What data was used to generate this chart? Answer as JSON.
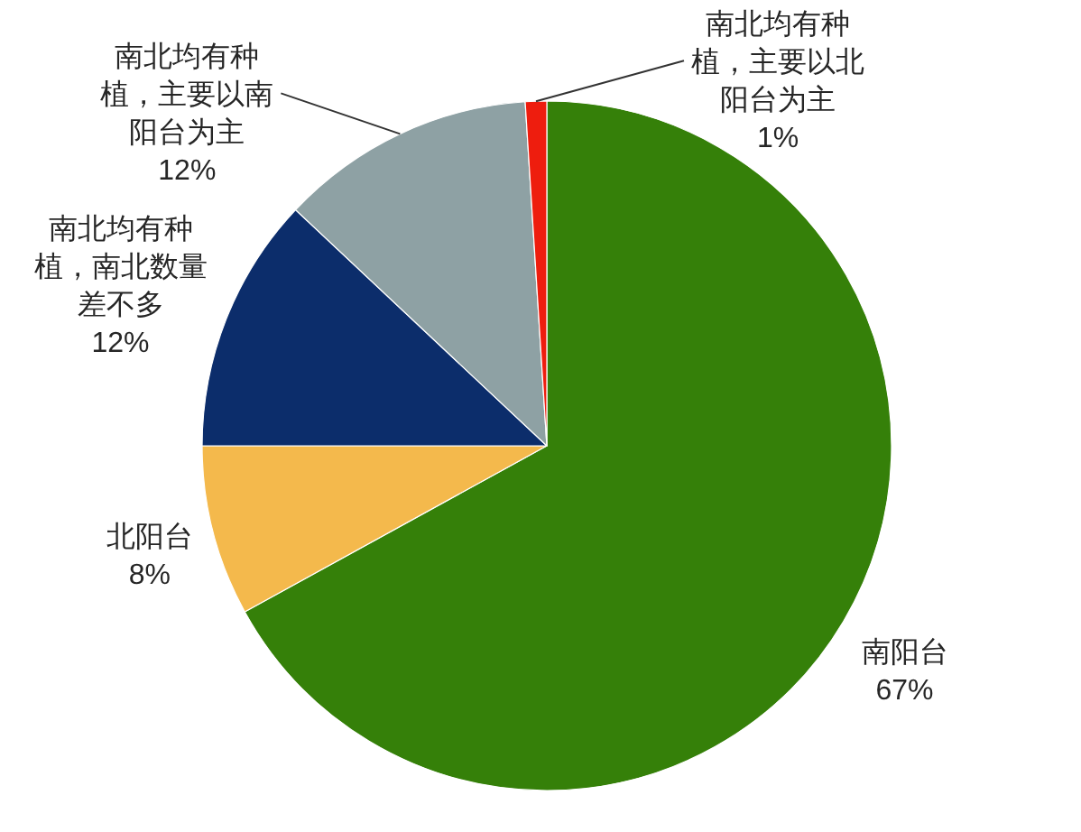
{
  "chart_data": {
    "type": "pie",
    "categories": [
      "南阳台",
      "北阳台",
      "南北均有种植，南北数量差不多",
      "南北均有种植，主要以南阳台为主",
      "南北均有种植，主要以北阳台为主"
    ],
    "values": [
      67,
      8,
      12,
      12,
      1
    ],
    "colors": [
      "#358009",
      "#f4b94c",
      "#0c2d6b",
      "#8ea1a4",
      "#ee1d0e"
    ],
    "value_labels": [
      "67%",
      "8%",
      "12%",
      "12%",
      "1%"
    ]
  }
}
